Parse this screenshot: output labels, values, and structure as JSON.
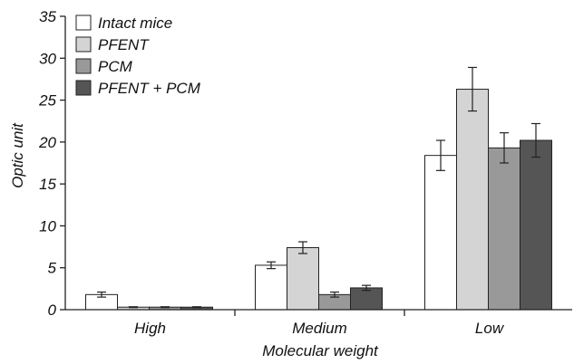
{
  "chart_data": {
    "type": "bar",
    "title": "",
    "xlabel": "Molecular weight",
    "ylabel": "Optic unit",
    "ylim": [
      0,
      35
    ],
    "yticks": [
      0,
      5,
      10,
      15,
      20,
      25,
      30,
      35
    ],
    "grid": false,
    "legend_position": "top-left",
    "categories": [
      "High",
      "Medium",
      "Low"
    ],
    "series": [
      {
        "name": "Intact mice",
        "color": "#ffffff",
        "values": [
          1.8,
          5.3,
          18.4
        ],
        "errors": [
          0.3,
          0.4,
          1.8
        ]
      },
      {
        "name": "PFENT",
        "color": "#d4d4d4",
        "values": [
          0.3,
          7.4,
          26.3
        ],
        "errors": [
          0.05,
          0.7,
          2.6
        ]
      },
      {
        "name": "PCM",
        "color": "#999999",
        "values": [
          0.3,
          1.8,
          19.3
        ],
        "errors": [
          0.05,
          0.3,
          1.8
        ]
      },
      {
        "name": "PFENT + PCM",
        "color": "#555555",
        "values": [
          0.3,
          2.6,
          20.2
        ],
        "errors": [
          0.05,
          0.3,
          2.0
        ]
      }
    ]
  }
}
